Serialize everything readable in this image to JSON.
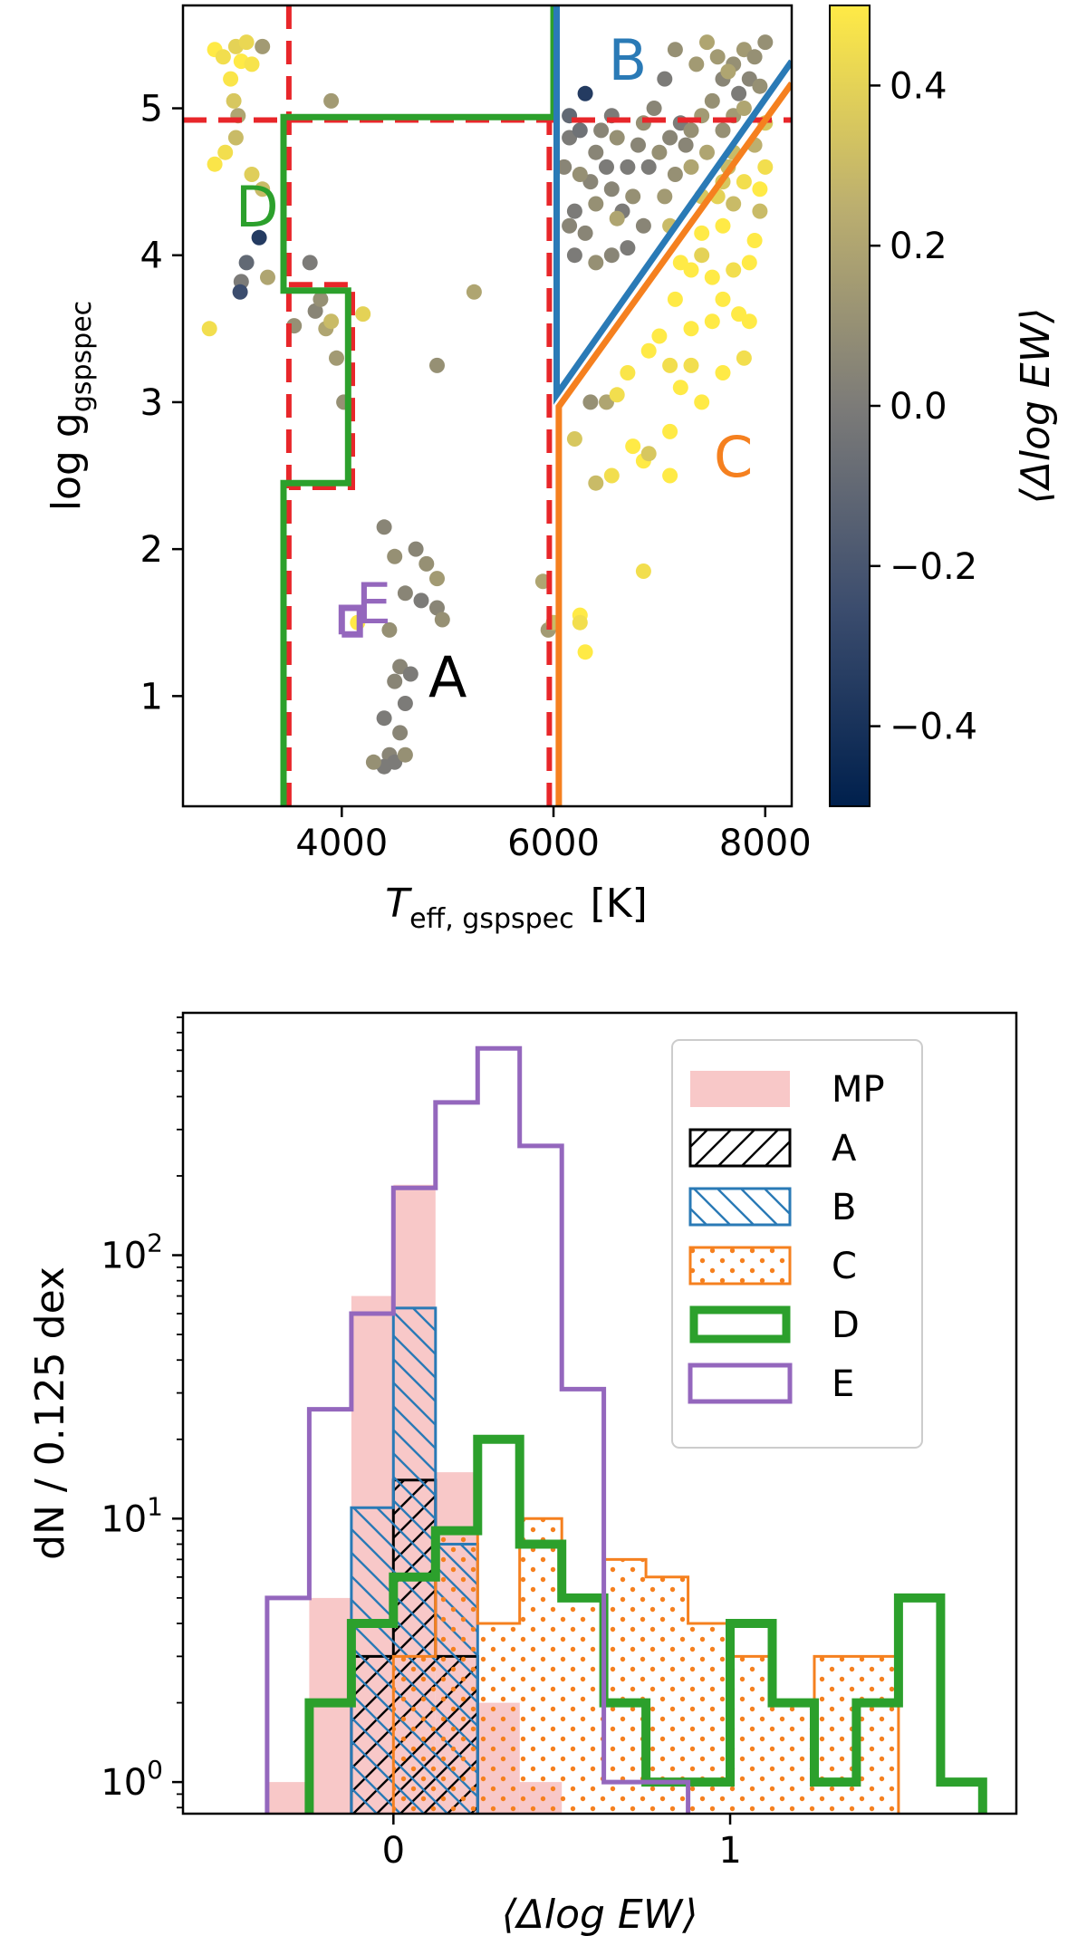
{
  "chart_data": [
    {
      "type": "scatter",
      "xlabel_main": "T",
      "xlabel_sub": "eff, gspspec",
      "xlabel_unit": "[K]",
      "ylabel_main": "log g",
      "ylabel_sub": "gspspec",
      "colorbar_label": "⟨Δlog EW⟩",
      "xlim": [
        2500,
        8250
      ],
      "ylim": [
        0.25,
        5.7
      ],
      "colorbar_range": [
        -0.5,
        0.5
      ],
      "x_ticks": [
        4000,
        6000,
        8000
      ],
      "x_tick_labels": [
        "4000",
        "6000",
        "8000"
      ],
      "y_ticks": [
        1,
        2,
        3,
        4,
        5
      ],
      "y_tick_labels": [
        "1",
        "2",
        "3",
        "4",
        "5"
      ],
      "cbar_ticks": [
        0.4,
        0.2,
        0.0,
        -0.2,
        -0.4
      ],
      "cbar_tick_labels": [
        "0.4",
        "0.2",
        "0.0",
        "−0.2",
        "−0.4"
      ],
      "colors": {
        "dashed": "#e8262a",
        "A": "#000000",
        "B": "#2a7ab6",
        "C": "#f5801f",
        "D": "#2ca02c",
        "E": "#9467bd"
      },
      "region_labels": [
        {
          "key": "A",
          "text": "A",
          "x": 5000,
          "y": 1.1
        },
        {
          "key": "B",
          "text": "B",
          "x": 6700,
          "y": 5.3
        },
        {
          "key": "C",
          "text": "C",
          "x": 7700,
          "y": 2.6
        },
        {
          "key": "D",
          "text": "D",
          "x": 3200,
          "y": 4.3
        },
        {
          "key": "E",
          "text": "E",
          "x": 4300,
          "y": 1.6
        }
      ],
      "boundaries": {
        "dashed_red": [
          [
            [
              3500,
              0.25
            ],
            [
              3500,
              5.7
            ]
          ],
          [
            [
              2500,
              4.92
            ],
            [
              8250,
              4.92
            ]
          ],
          [
            [
              3500,
              3.8
            ],
            [
              4100,
              3.8
            ],
            [
              4100,
              2.42
            ],
            [
              3500,
              2.42
            ]
          ],
          [
            [
              5960,
              0.25
            ],
            [
              5960,
              4.92
            ]
          ]
        ],
        "D": [
          [
            3450,
            0.25
          ],
          [
            3450,
            2.45
          ],
          [
            4060,
            2.45
          ],
          [
            4060,
            3.76
          ],
          [
            3450,
            3.76
          ],
          [
            3450,
            4.94
          ],
          [
            6000,
            4.94
          ],
          [
            6000,
            5.7
          ]
        ],
        "B": [
          [
            6030,
            5.7
          ],
          [
            6030,
            3.05
          ],
          [
            8250,
            5.32
          ]
        ],
        "C": [
          [
            6050,
            0.25
          ],
          [
            6050,
            2.97
          ],
          [
            8250,
            5.17
          ]
        ],
        "E": [
          [
            4000,
            1.42
          ],
          [
            4170,
            1.42
          ],
          [
            4170,
            1.6
          ],
          [
            4000,
            1.6
          ],
          [
            4000,
            1.42
          ]
        ]
      },
      "points": [
        [
          2800,
          5.4,
          0.5
        ],
        [
          2880,
          5.35,
          0.45
        ],
        [
          2950,
          5.2,
          0.48
        ],
        [
          3000,
          5.42,
          0.4
        ],
        [
          3050,
          5.32,
          0.5
        ],
        [
          3100,
          5.45,
          0.42
        ],
        [
          3150,
          5.3,
          0.47
        ],
        [
          2980,
          5.05,
          0.35
        ],
        [
          3020,
          4.95,
          0.2
        ],
        [
          2900,
          4.7,
          0.45
        ],
        [
          3000,
          4.8,
          0.3
        ],
        [
          2800,
          4.62,
          0.48
        ],
        [
          3150,
          4.55,
          0.38
        ],
        [
          3250,
          4.45,
          0.3
        ],
        [
          3220,
          4.12,
          -0.35
        ],
        [
          3250,
          5.42,
          0.15
        ],
        [
          2750,
          3.5,
          0.45
        ],
        [
          3050,
          3.82,
          0.0
        ],
        [
          3040,
          3.75,
          -0.25
        ],
        [
          3100,
          3.95,
          -0.1
        ],
        [
          3550,
          3.52,
          0.1
        ],
        [
          3750,
          3.62,
          0.05
        ],
        [
          3850,
          3.5,
          0.2
        ],
        [
          3900,
          3.55,
          0.3
        ],
        [
          3800,
          3.7,
          0.1
        ],
        [
          3950,
          3.3,
          0.15
        ],
        [
          4020,
          3.0,
          0.1
        ],
        [
          3900,
          5.05,
          0.15
        ],
        [
          3300,
          3.85,
          0.2
        ],
        [
          3700,
          3.95,
          0.0
        ],
        [
          4200,
          3.6,
          0.4
        ],
        [
          4400,
          2.15,
          0.05
        ],
        [
          4500,
          1.95,
          0.1
        ],
        [
          4700,
          2.0,
          0.05
        ],
        [
          4800,
          1.9,
          0.1
        ],
        [
          4900,
          1.8,
          0.15
        ],
        [
          4600,
          1.7,
          0.05
        ],
        [
          4750,
          1.65,
          0.0
        ],
        [
          4900,
          1.6,
          0.05
        ],
        [
          4950,
          1.52,
          0.1
        ],
        [
          4450,
          1.45,
          0.1
        ],
        [
          4550,
          1.2,
          0.05
        ],
        [
          4650,
          1.15,
          0.0
        ],
        [
          4500,
          1.1,
          0.05
        ],
        [
          4600,
          0.95,
          0.0
        ],
        [
          4400,
          0.85,
          0.0
        ],
        [
          4550,
          0.75,
          0.05
        ],
        [
          4450,
          0.6,
          0.05
        ],
        [
          4500,
          0.55,
          0.0
        ],
        [
          4600,
          0.6,
          0.1
        ],
        [
          4400,
          0.52,
          0.0
        ],
        [
          4300,
          0.55,
          0.1
        ],
        [
          4150,
          1.5,
          0.5
        ],
        [
          4900,
          3.25,
          0.1
        ],
        [
          5250,
          3.75,
          0.2
        ],
        [
          5900,
          1.78,
          0.2
        ],
        [
          5950,
          1.45,
          0.15
        ],
        [
          6000,
          1.5,
          0.3
        ],
        [
          6250,
          1.55,
          0.5
        ],
        [
          6300,
          1.3,
          0.5
        ],
        [
          6250,
          1.5,
          0.45
        ],
        [
          6200,
          2.75,
          0.35
        ],
        [
          6350,
          3.0,
          0.1
        ],
        [
          6500,
          3.0,
          0.2
        ],
        [
          6600,
          3.05,
          0.45
        ],
        [
          6700,
          3.2,
          0.48
        ],
        [
          6900,
          3.35,
          0.5
        ],
        [
          6750,
          2.7,
          0.5
        ],
        [
          6850,
          2.6,
          0.5
        ],
        [
          6400,
          2.45,
          0.3
        ],
        [
          6550,
          2.5,
          0.45
        ],
        [
          6900,
          2.65,
          0.35
        ],
        [
          7100,
          2.5,
          0.5
        ],
        [
          6850,
          1.85,
          0.45
        ],
        [
          7100,
          2.8,
          0.5
        ],
        [
          7200,
          3.1,
          0.5
        ],
        [
          7300,
          3.25,
          0.45
        ],
        [
          7400,
          3.0,
          0.5
        ],
        [
          7600,
          3.2,
          0.5
        ],
        [
          7800,
          3.3,
          0.45
        ],
        [
          7300,
          3.5,
          0.5
        ],
        [
          7500,
          3.55,
          0.5
        ],
        [
          7600,
          3.7,
          0.5
        ],
        [
          7700,
          3.9,
          0.45
        ],
        [
          7900,
          4.1,
          0.5
        ],
        [
          7500,
          3.85,
          0.5
        ],
        [
          7300,
          3.9,
          0.5
        ],
        [
          7600,
          4.2,
          0.5
        ],
        [
          7800,
          4.5,
          0.45
        ],
        [
          8000,
          4.6,
          0.45
        ],
        [
          7400,
          4.0,
          0.4
        ],
        [
          7700,
          4.35,
          0.3
        ],
        [
          7900,
          4.75,
          0.25
        ],
        [
          7950,
          4.45,
          0.5
        ],
        [
          8000,
          4.9,
          0.35
        ],
        [
          7750,
          3.6,
          0.5
        ],
        [
          7850,
          3.55,
          0.5
        ],
        [
          7150,
          3.7,
          0.5
        ],
        [
          7000,
          3.45,
          0.5
        ],
        [
          7100,
          3.25,
          0.45
        ],
        [
          7550,
          4.4,
          0.4
        ],
        [
          7650,
          4.6,
          0.3
        ],
        [
          7400,
          4.15,
          0.5
        ],
        [
          7850,
          3.95,
          0.5
        ],
        [
          7200,
          3.95,
          0.5
        ],
        [
          6150,
          4.8,
          0.0
        ],
        [
          6250,
          4.85,
          -0.05
        ],
        [
          6400,
          4.7,
          0.05
        ],
        [
          6500,
          4.6,
          0.0
        ],
        [
          6350,
          4.5,
          0.05
        ],
        [
          6600,
          4.8,
          0.1
        ],
        [
          6700,
          4.6,
          0.0
        ],
        [
          6800,
          4.75,
          0.05
        ],
        [
          6900,
          4.6,
          0.0
        ],
        [
          7000,
          4.7,
          0.1
        ],
        [
          7100,
          4.8,
          0.05
        ],
        [
          7200,
          4.9,
          0.0
        ],
        [
          7300,
          4.85,
          0.1
        ],
        [
          7400,
          4.95,
          0.15
        ],
        [
          7500,
          5.05,
          0.1
        ],
        [
          7600,
          5.2,
          0.05
        ],
        [
          7700,
          5.3,
          0.1
        ],
        [
          7800,
          5.4,
          0.15
        ],
        [
          7900,
          5.35,
          0.1
        ],
        [
          8000,
          5.45,
          0.1
        ],
        [
          7550,
          5.35,
          0.15
        ],
        [
          7650,
          5.25,
          0.2
        ],
        [
          7850,
          5.2,
          0.05
        ],
        [
          7950,
          5.15,
          0.1
        ],
        [
          7750,
          5.1,
          0.0
        ],
        [
          6300,
          5.1,
          -0.35
        ],
        [
          6100,
          4.6,
          0.05
        ],
        [
          6200,
          4.3,
          0.0
        ],
        [
          6300,
          4.15,
          0.05
        ],
        [
          6400,
          4.35,
          0.1
        ],
        [
          6550,
          4.45,
          0.05
        ],
        [
          6650,
          4.3,
          0.0
        ],
        [
          6750,
          4.4,
          0.1
        ],
        [
          6850,
          4.2,
          0.05
        ],
        [
          6700,
          4.05,
          0.0
        ],
        [
          6550,
          4.0,
          0.05
        ],
        [
          6400,
          3.95,
          0.1
        ],
        [
          6200,
          4.0,
          0.0
        ],
        [
          6150,
          4.2,
          0.05
        ],
        [
          6250,
          4.55,
          0.1
        ],
        [
          6600,
          4.25,
          0.2
        ],
        [
          7050,
          4.4,
          0.15
        ],
        [
          7150,
          4.55,
          0.1
        ],
        [
          7300,
          4.6,
          0.2
        ],
        [
          7250,
          4.75,
          0.05
        ],
        [
          7450,
          4.7,
          0.2
        ],
        [
          7600,
          4.85,
          0.1
        ],
        [
          7700,
          4.95,
          0.15
        ],
        [
          7800,
          5.0,
          0.2
        ],
        [
          7350,
          5.3,
          0.15
        ],
        [
          7150,
          5.4,
          0.1
        ],
        [
          7450,
          5.45,
          0.2
        ],
        [
          7050,
          5.2,
          0.0
        ],
        [
          6950,
          5.0,
          0.05
        ],
        [
          6850,
          4.9,
          0.1
        ],
        [
          6550,
          4.95,
          0.0
        ],
        [
          6450,
          4.85,
          0.05
        ],
        [
          6150,
          4.95,
          -0.1
        ],
        [
          7950,
          4.3,
          0.3
        ],
        [
          7700,
          4.7,
          0.3
        ],
        [
          7600,
          4.5,
          0.35
        ],
        [
          7400,
          4.4,
          0.35
        ],
        [
          7100,
          4.2,
          0.3
        ]
      ]
    },
    {
      "type": "histogram",
      "xlabel": "⟨Δlog EW⟩",
      "ylabel": "dN / 0.125 dex",
      "yscale": "log",
      "xlim": [
        -0.625,
        1.85
      ],
      "ylim_log10": [
        -0.12,
        2.92
      ],
      "x_ticks": [
        0,
        1
      ],
      "x_tick_labels": [
        "0",
        "1"
      ],
      "y_ticks_log10": [
        0,
        1,
        2
      ],
      "y_tick_base": "10",
      "y_tick_exps": [
        "0",
        "1",
        "2"
      ],
      "series": [
        {
          "key": "MP",
          "name": "MP",
          "color": "#f8c8c8",
          "style": "filled",
          "edges": [
            -0.375,
            -0.25,
            -0.125,
            0,
            0.125,
            0.25,
            0.375,
            0.5
          ],
          "values": [
            1,
            5,
            70,
            185,
            15,
            2,
            1
          ]
        },
        {
          "key": "A",
          "name": "A",
          "color": "#000000",
          "style": "hatch-forward",
          "edges": [
            -0.125,
            0,
            0.125,
            0.25
          ],
          "values": [
            3,
            14,
            3
          ]
        },
        {
          "key": "B",
          "name": "B",
          "color": "#2a7ab6",
          "style": "hatch-back",
          "edges": [
            -0.125,
            0,
            0.125,
            0.25
          ],
          "values": [
            11,
            63,
            8
          ]
        },
        {
          "key": "C",
          "name": "C",
          "color": "#f5801f",
          "style": "dots",
          "edges": [
            0,
            0.125,
            0.25,
            0.375,
            0.5,
            0.625,
            0.75,
            0.875,
            1.0,
            1.125,
            1.25,
            1.375,
            1.5
          ],
          "values": [
            3,
            9,
            4,
            10,
            5,
            7,
            6,
            4,
            3,
            2,
            3,
            3
          ]
        },
        {
          "key": "D",
          "name": "D",
          "color": "#2ca02c",
          "style": "step-thick",
          "edges": [
            -0.25,
            -0.125,
            0,
            0.125,
            0.25,
            0.375,
            0.5,
            0.625,
            0.75,
            0.875,
            1.0,
            1.125,
            1.25,
            1.375,
            1.5,
            1.625,
            1.75
          ],
          "values": [
            2,
            4,
            6,
            9,
            20,
            8,
            5,
            2,
            1,
            1,
            4,
            2,
            1,
            2,
            5,
            1
          ]
        },
        {
          "key": "E",
          "name": "E",
          "color": "#9467bd",
          "style": "step",
          "edges": [
            -0.375,
            -0.25,
            -0.125,
            0,
            0.125,
            0.25,
            0.375,
            0.5,
            0.625,
            0.75,
            0.875
          ],
          "values": [
            5,
            26,
            60,
            180,
            380,
            610,
            260,
            31,
            1,
            1
          ]
        }
      ]
    }
  ]
}
